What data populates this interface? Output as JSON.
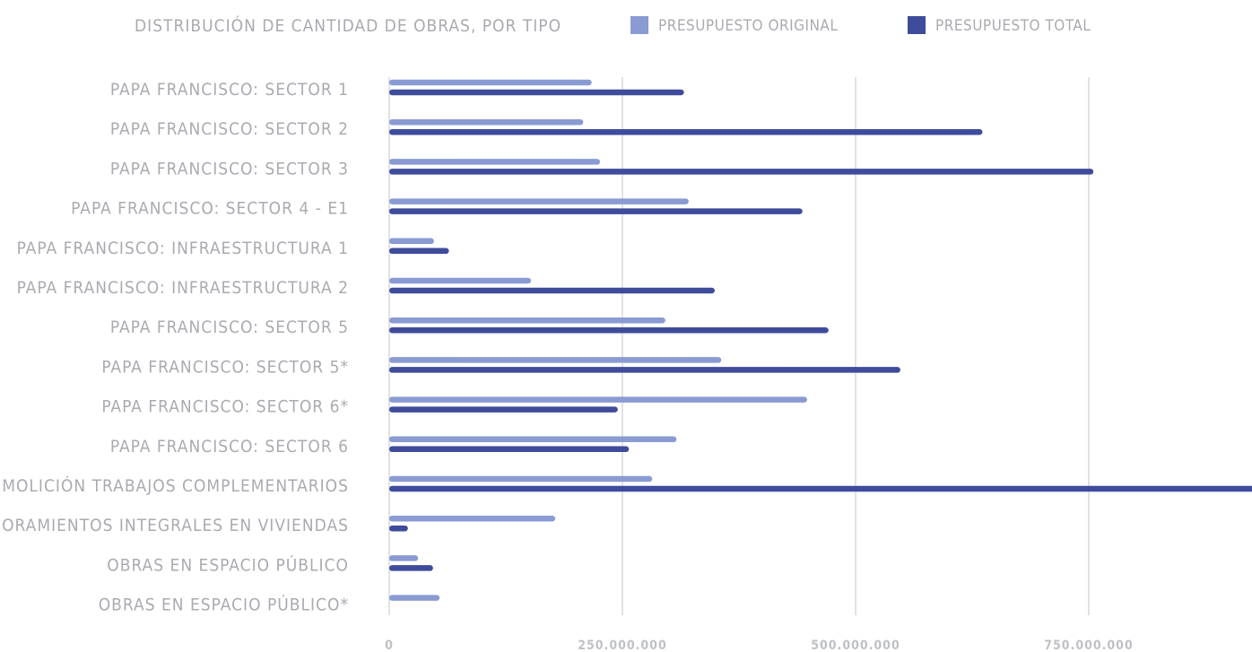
{
  "chart_data": {
    "type": "bar",
    "orientation": "horizontal",
    "title": "DISTRIBUCIÓN DE CANTIDAD DE OBRAS, POR TIPO",
    "legend_position": "top",
    "grid": true,
    "xlim": [
      0,
      925000000
    ],
    "ticks": [
      {
        "value": 0,
        "label": "0"
      },
      {
        "value": 250000000,
        "label": "250.000.000"
      },
      {
        "value": 500000000,
        "label": "500.000.000"
      },
      {
        "value": 750000000,
        "label": "750.000.000"
      }
    ],
    "categories": [
      "PAPA FRANCISCO: SECTOR 1",
      "PAPA FRANCISCO: SECTOR 2",
      "PAPA FRANCISCO: SECTOR 3",
      "PAPA FRANCISCO: SECTOR 4 - E1",
      "PAPA FRANCISCO: INFRAESTRUCTURA 1",
      "PAPA FRANCISCO: INFRAESTRUCTURA 2",
      "PAPA FRANCISCO: SECTOR 5",
      "PAPA FRANCISCO: SECTOR 5*",
      "PAPA FRANCISCO: SECTOR 6*",
      "PAPA FRANCISCO: SECTOR 6",
      "DEMOLICIÓN TRABAJOS COMPLEMENTARIOS",
      "MEJORAMIENTOS INTEGRALES EN VIVIENDAS",
      "OBRAS EN ESPACIO PÚBLICO",
      "OBRAS EN ESPACIO PÚBLICO*"
    ],
    "series": [
      {
        "name": "PRESUPUESTO ORIGINAL",
        "color": "#8a9bd3",
        "values": [
          217000000,
          208000000,
          226000000,
          321000000,
          48000000,
          152000000,
          296000000,
          356000000,
          448000000,
          308000000,
          282000000,
          178000000,
          31000000,
          54000000
        ]
      },
      {
        "name": "PRESUPUESTO TOTAL",
        "color": "#3f4c9b",
        "values": [
          316000000,
          636000000,
          755000000,
          443000000,
          64000000,
          349000000,
          471000000,
          548000000,
          245000000,
          257000000,
          960000000,
          20000000,
          47000000,
          0
        ]
      }
    ]
  }
}
